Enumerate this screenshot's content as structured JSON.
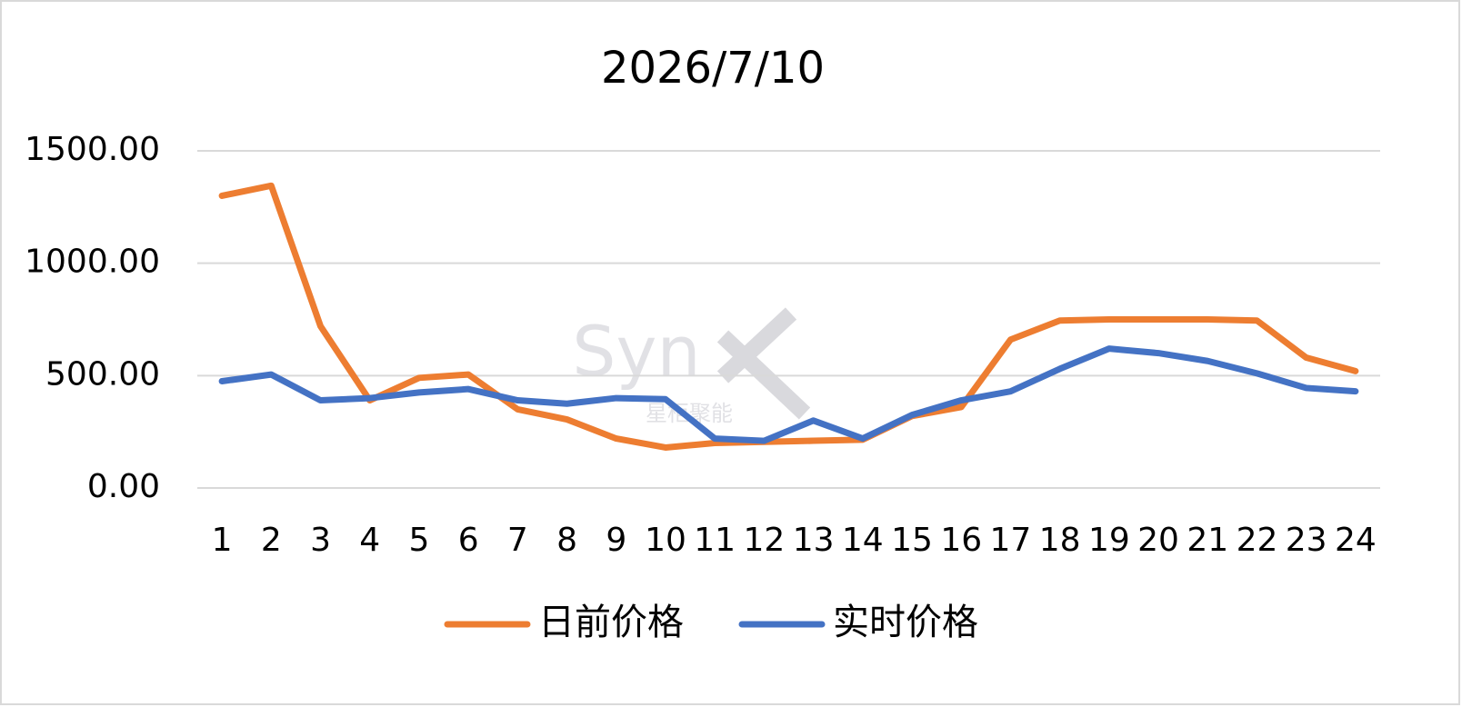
{
  "chart_data": {
    "type": "line",
    "title": "2026/7/10",
    "categories": [
      "1",
      "2",
      "3",
      "4",
      "5",
      "6",
      "7",
      "8",
      "9",
      "10",
      "11",
      "12",
      "13",
      "14",
      "15",
      "16",
      "17",
      "18",
      "19",
      "20",
      "21",
      "22",
      "23",
      "24"
    ],
    "series": [
      {
        "name": "日前价格",
        "color": "#ed7d31",
        "values": [
          1300,
          1345,
          720,
          390,
          490,
          505,
          350,
          305,
          220,
          180,
          200,
          205,
          210,
          215,
          320,
          360,
          660,
          745,
          750,
          750,
          750,
          745,
          580,
          520
        ]
      },
      {
        "name": "实时价格",
        "color": "#4472c4",
        "values": [
          475,
          505,
          390,
          400,
          425,
          440,
          390,
          375,
          400,
          395,
          220,
          210,
          300,
          220,
          325,
          390,
          430,
          530,
          620,
          600,
          565,
          510,
          445,
          430
        ]
      }
    ],
    "ylim": [
      0,
      1500
    ],
    "yticks": [
      {
        "value": 0,
        "label": "0.00"
      },
      {
        "value": 500,
        "label": "500.00"
      },
      {
        "value": 1000,
        "label": "1000.00"
      },
      {
        "value": 1500,
        "label": "1500.00"
      }
    ],
    "grid": true,
    "legend": "bottom",
    "watermark": {
      "text": "Syn",
      "subtext": "星柜聚能"
    }
  }
}
